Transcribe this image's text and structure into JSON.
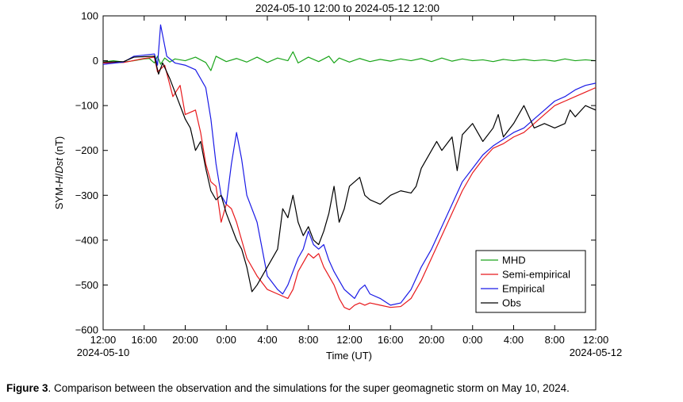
{
  "caption": {
    "label": "Figure 3",
    "text": ".   Comparison between the observation and the simulations for the super geomagnetic storm on May 10, 2024."
  },
  "chart_data": {
    "type": "line",
    "title": "2024-05-10 12:00 to 2024-05-12 12:00",
    "xlabel": "Time (UT)",
    "ylabel_parts": [
      "SYM-",
      "H",
      "/",
      "Dst",
      " (nT)"
    ],
    "x_unit": "hours since 2024-05-10 12:00",
    "xlim": [
      0,
      48
    ],
    "ylim": [
      -600,
      100
    ],
    "yticks": [
      100,
      0,
      -100,
      -200,
      -300,
      -400,
      -500,
      -600
    ],
    "ytick_labels": [
      "100",
      "0",
      "−100",
      "−200",
      "−300",
      "−400",
      "−500",
      "−600"
    ],
    "xticks": [
      0,
      4,
      8,
      12,
      16,
      20,
      24,
      28,
      32,
      36,
      40,
      44,
      48
    ],
    "xtick_labels": [
      "12:00",
      "16:00",
      "20:00",
      "0:00",
      "4:00",
      "8:00",
      "12:00",
      "16:00",
      "20:00",
      "0:00",
      "4:00",
      "8:00",
      "12:00"
    ],
    "date_labels": [
      {
        "x": 0,
        "text": "2024-05-10"
      },
      {
        "x": 48,
        "text": "2024-05-12"
      }
    ],
    "grid": false,
    "legend_position": "bottom-right",
    "series": [
      {
        "name": "MHD",
        "color": "#1aa51a",
        "points": [
          [
            0,
            -3
          ],
          [
            1,
            0
          ],
          [
            2,
            -3
          ],
          [
            3,
            0
          ],
          [
            4,
            4
          ],
          [
            4.5,
            5
          ],
          [
            5,
            -5
          ],
          [
            5.3,
            10
          ],
          [
            5.6,
            -8
          ],
          [
            6,
            6
          ],
          [
            6.5,
            -3
          ],
          [
            7,
            4
          ],
          [
            8,
            0
          ],
          [
            9,
            8
          ],
          [
            10,
            -4
          ],
          [
            10.5,
            -22
          ],
          [
            11,
            10
          ],
          [
            12,
            -2
          ],
          [
            13,
            5
          ],
          [
            14,
            -3
          ],
          [
            15,
            8
          ],
          [
            16,
            -4
          ],
          [
            17,
            6
          ],
          [
            18,
            0
          ],
          [
            18.5,
            20
          ],
          [
            19,
            -5
          ],
          [
            20,
            8
          ],
          [
            21,
            -2
          ],
          [
            22,
            10
          ],
          [
            22.5,
            -5
          ],
          [
            23,
            6
          ],
          [
            24,
            -3
          ],
          [
            25,
            5
          ],
          [
            26,
            -2
          ],
          [
            27,
            3
          ],
          [
            28,
            -1
          ],
          [
            29,
            4
          ],
          [
            30,
            0
          ],
          [
            31,
            5
          ],
          [
            32,
            -2
          ],
          [
            33,
            6
          ],
          [
            34,
            -1
          ],
          [
            35,
            4
          ],
          [
            36,
            0
          ],
          [
            37,
            2
          ],
          [
            38,
            -2
          ],
          [
            39,
            3
          ],
          [
            40,
            0
          ],
          [
            41,
            3
          ],
          [
            42,
            0
          ],
          [
            43,
            2
          ],
          [
            44,
            -1
          ],
          [
            45,
            4
          ],
          [
            46,
            0
          ],
          [
            47,
            2
          ],
          [
            48,
            0
          ]
        ]
      },
      {
        "name": "Semi-empirical",
        "color": "#e8191c",
        "points": [
          [
            0,
            -5
          ],
          [
            2,
            -4
          ],
          [
            4,
            5
          ],
          [
            5,
            8
          ],
          [
            5.3,
            -25
          ],
          [
            6,
            -10
          ],
          [
            6.8,
            -80
          ],
          [
            7.5,
            -55
          ],
          [
            8,
            -120
          ],
          [
            9,
            -110
          ],
          [
            9.5,
            -160
          ],
          [
            10,
            -230
          ],
          [
            10.5,
            -270
          ],
          [
            11,
            -280
          ],
          [
            11.5,
            -360
          ],
          [
            12,
            -320
          ],
          [
            12.5,
            -330
          ],
          [
            13,
            -360
          ],
          [
            14,
            -440
          ],
          [
            15,
            -480
          ],
          [
            16,
            -510
          ],
          [
            17,
            -520
          ],
          [
            18,
            -530
          ],
          [
            18.5,
            -510
          ],
          [
            19,
            -470
          ],
          [
            19.5,
            -450
          ],
          [
            20,
            -430
          ],
          [
            20.5,
            -440
          ],
          [
            21,
            -430
          ],
          [
            21.5,
            -460
          ],
          [
            22,
            -480
          ],
          [
            22.5,
            -500
          ],
          [
            23,
            -530
          ],
          [
            23.5,
            -550
          ],
          [
            24,
            -555
          ],
          [
            24.5,
            -545
          ],
          [
            25,
            -540
          ],
          [
            25.5,
            -545
          ],
          [
            26,
            -540
          ],
          [
            27,
            -545
          ],
          [
            28,
            -550
          ],
          [
            29,
            -548
          ],
          [
            30,
            -530
          ],
          [
            31,
            -490
          ],
          [
            32,
            -440
          ],
          [
            33,
            -390
          ],
          [
            34,
            -340
          ],
          [
            35,
            -290
          ],
          [
            36,
            -250
          ],
          [
            37,
            -220
          ],
          [
            38,
            -195
          ],
          [
            39,
            -185
          ],
          [
            40,
            -170
          ],
          [
            41,
            -160
          ],
          [
            42,
            -140
          ],
          [
            43,
            -120
          ],
          [
            44,
            -100
          ],
          [
            45,
            -90
          ],
          [
            46,
            -80
          ],
          [
            47,
            -70
          ],
          [
            48,
            -60
          ]
        ]
      },
      {
        "name": "Empirical",
        "color": "#1a1ae6",
        "points": [
          [
            0,
            -8
          ],
          [
            2,
            -3
          ],
          [
            3,
            10
          ],
          [
            5,
            15
          ],
          [
            5.3,
            -10
          ],
          [
            5.6,
            80
          ],
          [
            6.2,
            10
          ],
          [
            7,
            -5
          ],
          [
            8,
            -10
          ],
          [
            9,
            -20
          ],
          [
            10,
            -60
          ],
          [
            10.5,
            -130
          ],
          [
            11,
            -230
          ],
          [
            11.5,
            -300
          ],
          [
            12,
            -320
          ],
          [
            12.5,
            -230
          ],
          [
            13,
            -160
          ],
          [
            13.5,
            -220
          ],
          [
            14,
            -300
          ],
          [
            15,
            -360
          ],
          [
            15.5,
            -420
          ],
          [
            16,
            -480
          ],
          [
            17,
            -510
          ],
          [
            17.5,
            -520
          ],
          [
            18,
            -500
          ],
          [
            18.5,
            -470
          ],
          [
            19,
            -440
          ],
          [
            19.5,
            -420
          ],
          [
            20,
            -380
          ],
          [
            20.5,
            -410
          ],
          [
            21,
            -420
          ],
          [
            21.5,
            -410
          ],
          [
            22,
            -445
          ],
          [
            22.5,
            -470
          ],
          [
            23,
            -490
          ],
          [
            23.5,
            -510
          ],
          [
            24,
            -520
          ],
          [
            24.5,
            -530
          ],
          [
            25,
            -510
          ],
          [
            25.5,
            -500
          ],
          [
            26,
            -520
          ],
          [
            27,
            -530
          ],
          [
            28,
            -545
          ],
          [
            29,
            -540
          ],
          [
            30,
            -510
          ],
          [
            31,
            -460
          ],
          [
            32,
            -420
          ],
          [
            33,
            -370
          ],
          [
            34,
            -320
          ],
          [
            35,
            -270
          ],
          [
            36,
            -240
          ],
          [
            37,
            -210
          ],
          [
            38,
            -190
          ],
          [
            39,
            -175
          ],
          [
            40,
            -160
          ],
          [
            41,
            -150
          ],
          [
            42,
            -130
          ],
          [
            43,
            -110
          ],
          [
            44,
            -90
          ],
          [
            45,
            -80
          ],
          [
            46,
            -65
          ],
          [
            47,
            -55
          ],
          [
            48,
            -50
          ]
        ]
      },
      {
        "name": "Obs",
        "color": "#000000",
        "points": [
          [
            0,
            -3
          ],
          [
            2,
            -2
          ],
          [
            3,
            8
          ],
          [
            5,
            10
          ],
          [
            5.4,
            -30
          ],
          [
            5.8,
            -5
          ],
          [
            6.5,
            -40
          ],
          [
            7,
            -70
          ],
          [
            7.5,
            -100
          ],
          [
            8,
            -130
          ],
          [
            8.5,
            -150
          ],
          [
            9,
            -200
          ],
          [
            9.5,
            -180
          ],
          [
            10,
            -240
          ],
          [
            10.5,
            -290
          ],
          [
            11,
            -310
          ],
          [
            11.5,
            -300
          ],
          [
            12,
            -340
          ],
          [
            12.5,
            -370
          ],
          [
            13,
            -400
          ],
          [
            13.5,
            -420
          ],
          [
            14,
            -460
          ],
          [
            14.5,
            -515
          ],
          [
            15,
            -500
          ],
          [
            15.5,
            -480
          ],
          [
            16,
            -460
          ],
          [
            17,
            -420
          ],
          [
            17.5,
            -330
          ],
          [
            18,
            -350
          ],
          [
            18.5,
            -300
          ],
          [
            19,
            -360
          ],
          [
            19.5,
            -390
          ],
          [
            20,
            -370
          ],
          [
            20.5,
            -400
          ],
          [
            21,
            -410
          ],
          [
            21.5,
            -380
          ],
          [
            22,
            -340
          ],
          [
            22.5,
            -280
          ],
          [
            23,
            -360
          ],
          [
            23.5,
            -330
          ],
          [
            24,
            -280
          ],
          [
            25,
            -260
          ],
          [
            25.5,
            -300
          ],
          [
            26,
            -310
          ],
          [
            27,
            -320
          ],
          [
            28,
            -300
          ],
          [
            29,
            -290
          ],
          [
            30,
            -295
          ],
          [
            30.5,
            -280
          ],
          [
            31,
            -240
          ],
          [
            32,
            -200
          ],
          [
            32.5,
            -180
          ],
          [
            33,
            -200
          ],
          [
            34,
            -170
          ],
          [
            34.5,
            -245
          ],
          [
            35,
            -165
          ],
          [
            36,
            -140
          ],
          [
            37,
            -180
          ],
          [
            38,
            -150
          ],
          [
            38.5,
            -120
          ],
          [
            39,
            -170
          ],
          [
            40,
            -140
          ],
          [
            40.5,
            -120
          ],
          [
            41,
            -100
          ],
          [
            42,
            -150
          ],
          [
            43,
            -140
          ],
          [
            44,
            -150
          ],
          [
            45,
            -140
          ],
          [
            45.5,
            -110
          ],
          [
            46,
            -125
          ],
          [
            47,
            -100
          ],
          [
            48,
            -110
          ]
        ]
      }
    ]
  }
}
